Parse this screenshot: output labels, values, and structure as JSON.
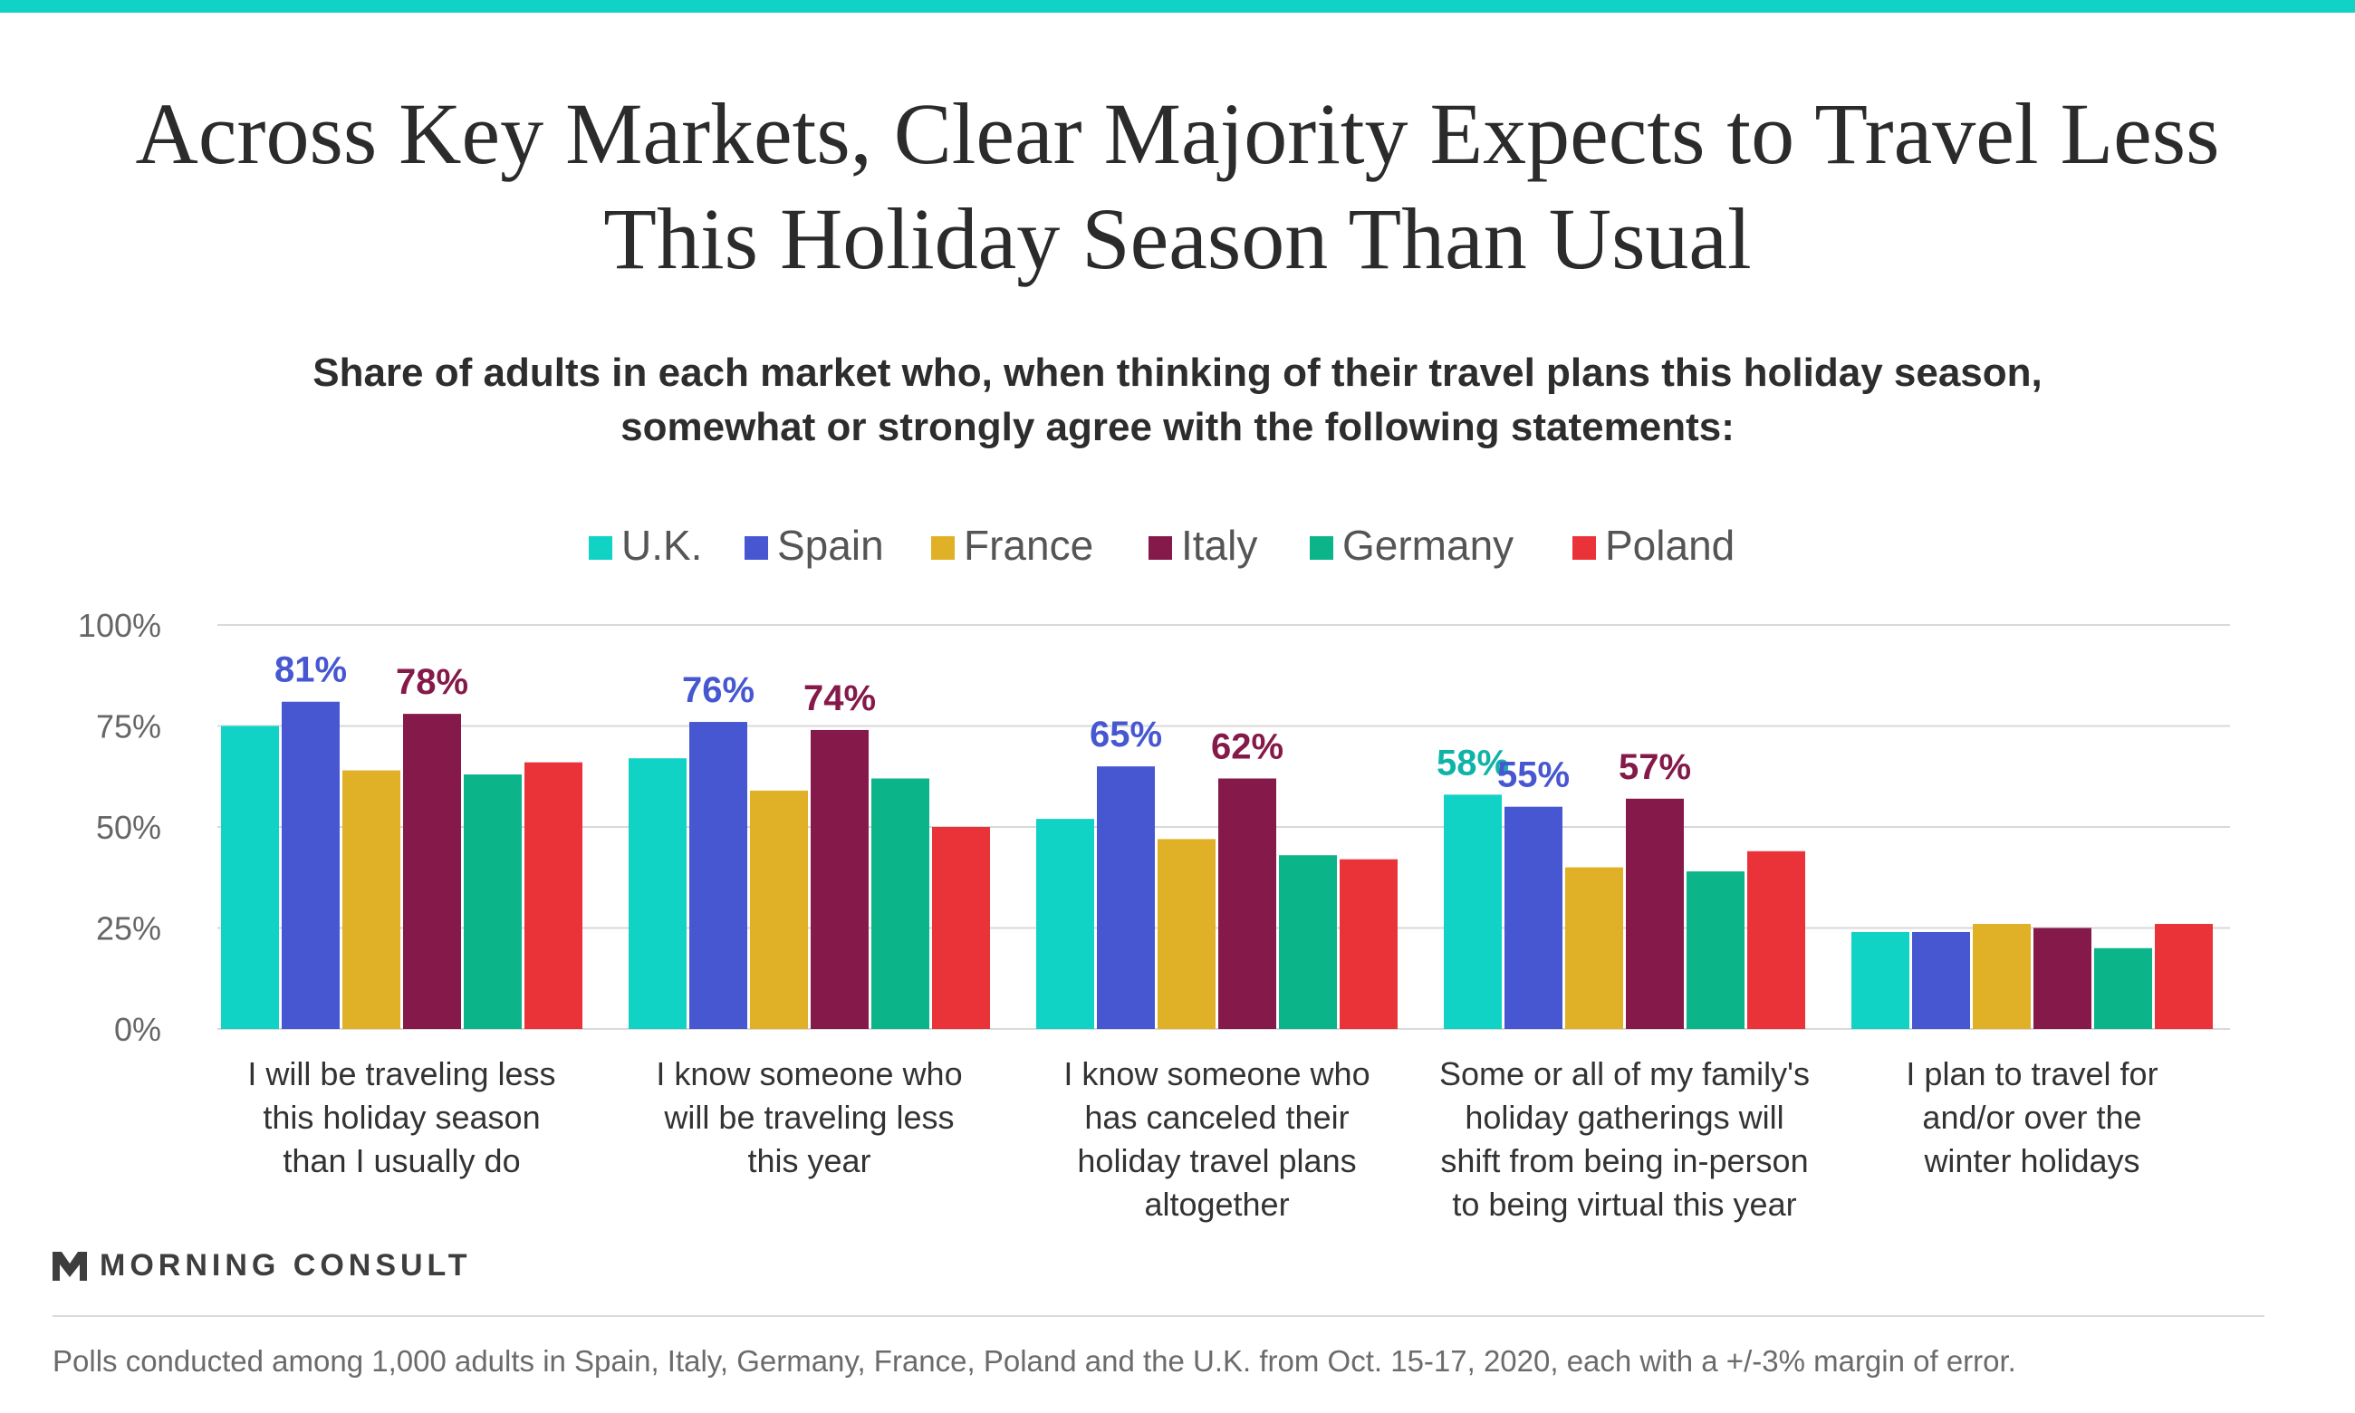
{
  "title": "Across Key Markets, Clear Majority Expects to Travel Less This Holiday Season Than Usual",
  "subtitle": "Share of adults in each market who, when thinking of their travel plans this holiday season, somewhat or strongly agree with the following statements:",
  "brand": {
    "logo_icon": "morning-consult-m-icon",
    "name": "MORNING CONSULT",
    "accent_color": "#10d3c6"
  },
  "footnote": "Polls conducted among 1,000 adults in Spain, Italy, Germany, France, Poland and the U.K. from Oct. 15-17, 2020, each with a +/-3% margin of error.",
  "chart_data": {
    "type": "bar",
    "categories": [
      "I will be traveling less this holiday season than I usually do",
      "I know someone who will be traveling less this year",
      "I know someone who has canceled their holiday travel plans altogether",
      "Some or all of my family's holiday gatherings will shift from being in-person to being virtual this year",
      "I plan to travel for and/or over the winter holidays"
    ],
    "category_lines": [
      [
        "I will be traveling less",
        "this holiday season",
        "than I usually do"
      ],
      [
        "I know someone who",
        "will be traveling less",
        "this year"
      ],
      [
        "I know someone who",
        "has canceled their",
        "holiday travel plans",
        "altogether"
      ],
      [
        "Some or all of my family's",
        "holiday gatherings will",
        "shift from being in-person",
        "to being virtual this year"
      ],
      [
        "I plan to travel for",
        "and/or over the",
        "winter holidays"
      ]
    ],
    "series": [
      {
        "name": "U.K.",
        "color": "#10d3c6",
        "label_color": "#0fb3a8",
        "values": [
          75,
          67,
          52,
          58,
          24
        ]
      },
      {
        "name": "Spain",
        "color": "#4657d1",
        "label_color": "#4657d1",
        "values": [
          81,
          76,
          65,
          55,
          24
        ]
      },
      {
        "name": "France",
        "color": "#e0b127",
        "label_color": "#e0b127",
        "values": [
          64,
          59,
          47,
          40,
          26
        ]
      },
      {
        "name": "Italy",
        "color": "#851a4a",
        "label_color": "#851a4a",
        "values": [
          78,
          74,
          62,
          57,
          25
        ]
      },
      {
        "name": "Germany",
        "color": "#0bb589",
        "label_color": "#0bb589",
        "values": [
          63,
          62,
          43,
          39,
          20
        ]
      },
      {
        "name": "Poland",
        "color": "#ea3338",
        "label_color": "#ea3338",
        "values": [
          66,
          50,
          42,
          44,
          26
        ]
      }
    ],
    "data_labels": [
      {
        "series": "Spain",
        "category": 0,
        "text": "81%"
      },
      {
        "series": "Italy",
        "category": 0,
        "text": "78%"
      },
      {
        "series": "Spain",
        "category": 1,
        "text": "76%"
      },
      {
        "series": "Italy",
        "category": 1,
        "text": "74%"
      },
      {
        "series": "Spain",
        "category": 2,
        "text": "65%"
      },
      {
        "series": "Italy",
        "category": 2,
        "text": "62%"
      },
      {
        "series": "U.K.",
        "category": 3,
        "text": "58%"
      },
      {
        "series": "Spain",
        "category": 3,
        "text": "55%"
      },
      {
        "series": "Italy",
        "category": 3,
        "text": "57%"
      }
    ],
    "yticks": [
      "0%",
      "25%",
      "50%",
      "75%",
      "100%"
    ],
    "ytick_values": [
      0,
      25,
      50,
      75,
      100
    ],
    "ylim": [
      0,
      100
    ],
    "grid": true,
    "legend": "top"
  }
}
